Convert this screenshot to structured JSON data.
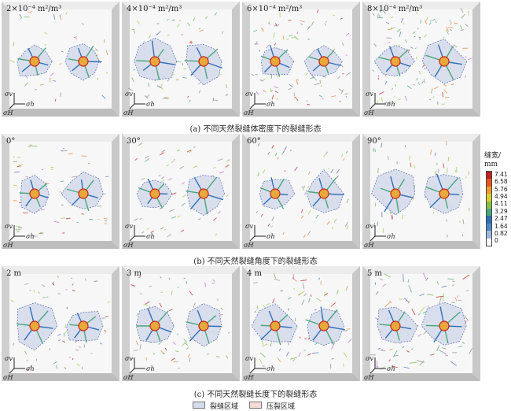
{
  "rows": [
    {
      "caption": "(a) 不同天然裂缝体密度下的裂缝形态",
      "panels": [
        {
          "label": "2×10⁻⁴ m²/m³"
        },
        {
          "label": "4×10⁻⁴ m²/m³"
        },
        {
          "label": "6×10⁻⁴ m²/m³"
        },
        {
          "label": "8×10⁻⁴ m²/m³"
        }
      ]
    },
    {
      "caption": "(b) 不同天然裂缝角度下的裂缝形态",
      "panels": [
        {
          "label": "0°"
        },
        {
          "label": "30°"
        },
        {
          "label": "60°"
        },
        {
          "label": "90°"
        }
      ]
    },
    {
      "caption": "(c) 不同天然裂缝长度下的裂缝形态",
      "panels": [
        {
          "label": "2 m"
        },
        {
          "label": "3 m"
        },
        {
          "label": "4 m"
        },
        {
          "label": "5 m"
        }
      ]
    }
  ],
  "axes": {
    "v": "σv",
    "h": "σH",
    "hmin": "σh"
  },
  "colorbar": {
    "title_line1": "缝宽/",
    "title_line2": "mm",
    "ticks": [
      "7.41",
      "6.58",
      "5.76",
      "4.94",
      "4.11",
      "3.29",
      "2.47",
      "1.64",
      "0.82",
      "0"
    ],
    "colors": [
      "#c4221d",
      "#e8561c",
      "#f09a2a",
      "#d7cf2f",
      "#86c04a",
      "#4aa77a",
      "#2f6fb7",
      "#4f86c7",
      "#9fb7dd",
      "#ffffff"
    ]
  },
  "legend": {
    "item1": "裂缝区域",
    "item2": "压裂区域",
    "color1": "#d6dcec",
    "color2": "#f4dcd6"
  }
}
